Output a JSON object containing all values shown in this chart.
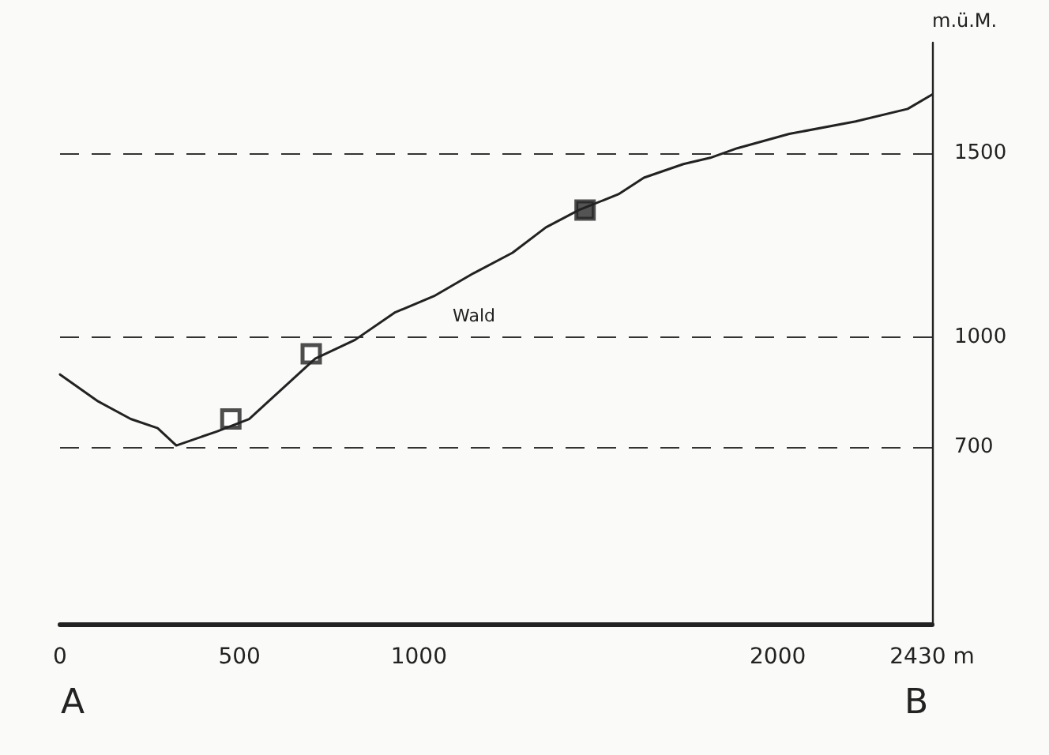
{
  "chart_data": {
    "type": "line",
    "ylabel": "m.ü.M.",
    "xlim": [
      0,
      2430
    ],
    "xticks": [
      0,
      500,
      1000,
      2000,
      {
        "value": 2430,
        "label": "2430 m"
      }
    ],
    "ylim": [
      220,
      1800
    ],
    "yticks": [
      700,
      1000,
      1500
    ],
    "grid": "y",
    "marker": "none",
    "line_style": "solid",
    "series": [
      {
        "color": "#222222",
        "x": [
          0,
          106,
          197,
          272,
          324,
          437,
          527,
          619,
          711,
          822,
          932,
          1042,
          1152,
          1261,
          1354,
          1446,
          1556,
          1627,
          1737,
          1812,
          1887,
          2032,
          2217,
          2362,
          2430
        ],
        "values": [
          898,
          825,
          777,
          752,
          705,
          743,
          777,
          859,
          941,
          992,
          1066,
          1111,
          1173,
          1229,
          1298,
          1345,
          1388,
          1433,
          1470,
          1487,
          1513,
          1552,
          1586,
          1620,
          1659
        ]
      },
      {
        "type": "scatter",
        "marker": "square",
        "color": "#ffffff",
        "x": [
          476,
          700
        ],
        "values": [
          777,
          954
        ]
      },
      {
        "type": "scatter",
        "marker": "square",
        "color": "#2b2b2b",
        "x": [
          1463
        ],
        "values": [
          1345
        ]
      }
    ],
    "annotations": [
      "Wald",
      "A",
      "B"
    ]
  }
}
